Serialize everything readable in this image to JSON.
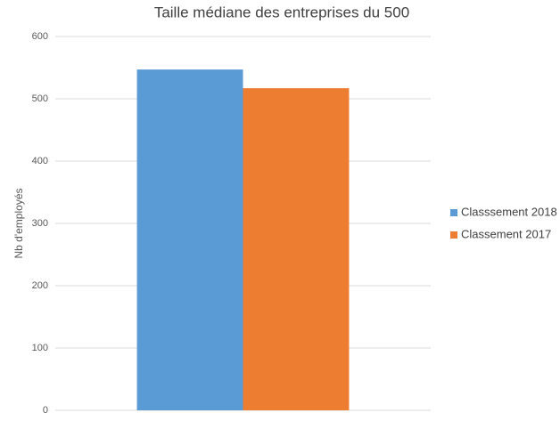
{
  "chart_data": {
    "type": "bar",
    "title": "Taille médiane des entreprises du 500",
    "y_label": "Nb d'employés",
    "categories": [
      null
    ],
    "series": [
      {
        "name": "Classsement 2018",
        "color": "#5b9bd5",
        "values": [
          547
        ]
      },
      {
        "name": "Classement 2017",
        "color": "#ed7d31",
        "values": [
          517
        ]
      }
    ],
    "ylim": [
      0,
      600
    ],
    "yticks": [
      0,
      100,
      200,
      300,
      400,
      500,
      600
    ],
    "grid": true,
    "legend": "right"
  }
}
